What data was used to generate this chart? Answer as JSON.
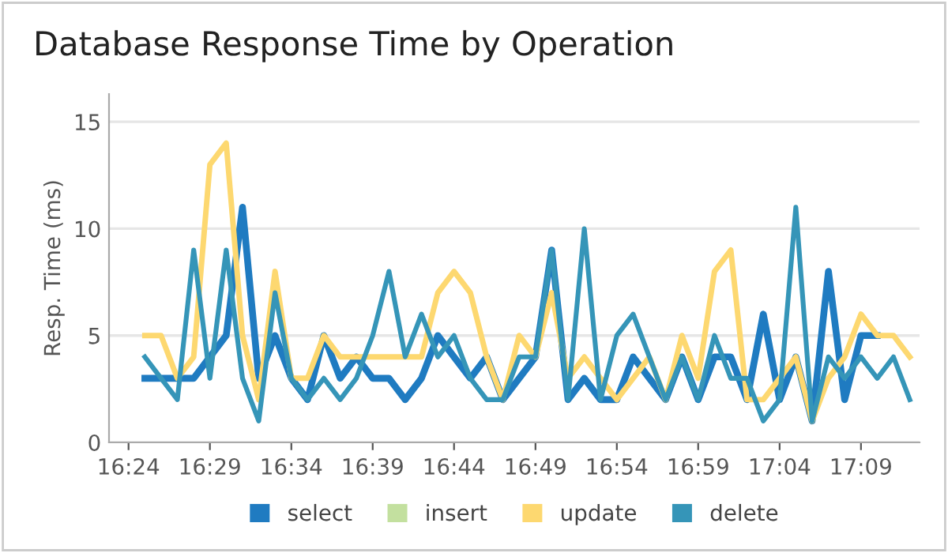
{
  "chart_data": {
    "type": "line",
    "title": "Database Response Time by Operation",
    "ylabel": "Resp. Time (ms)",
    "x": [
      16.4167,
      16.4333,
      16.45,
      16.4667,
      16.4833,
      16.5,
      16.5167,
      16.5333,
      16.55,
      16.5667,
      16.5833,
      16.6,
      16.6167,
      16.6333,
      16.65,
      16.6667,
      16.6833,
      16.7,
      16.7167,
      16.7333,
      16.75,
      16.7667,
      16.7833,
      16.8,
      16.8167,
      16.8333,
      16.85,
      16.8667,
      16.8833,
      16.9,
      16.9167,
      16.9333,
      16.95,
      16.9667,
      16.9833,
      17,
      17.0167,
      17.0333,
      17.05,
      17.0667,
      17.0833,
      17.1,
      17.1167,
      17.1333,
      17.15,
      17.1667,
      17.1833,
      17.2
    ],
    "series": [
      {
        "name": "select",
        "color": "#1f7bc1",
        "values": [
          3,
          3,
          3,
          3,
          4,
          5,
          11,
          3,
          5,
          3,
          2,
          5,
          3,
          4,
          3,
          3,
          2,
          3,
          5,
          4,
          3,
          4,
          2,
          3,
          4,
          9,
          2,
          3,
          2,
          2,
          4,
          3,
          2,
          4,
          2,
          4,
          4,
          2,
          6,
          2,
          4,
          1,
          8,
          2,
          5,
          5,
          null,
          null
        ]
      },
      {
        "name": "insert",
        "color": "#c3e09f",
        "values": [
          null,
          null,
          null,
          null,
          null,
          null,
          null,
          null,
          null,
          null,
          null,
          null,
          null,
          null,
          null,
          null,
          null,
          null,
          null,
          null,
          null,
          null,
          null,
          null,
          null,
          null,
          null,
          null,
          null,
          null,
          null,
          null,
          null,
          null,
          null,
          null,
          null,
          null,
          null,
          null,
          null,
          null,
          null,
          null,
          null,
          null,
          null,
          null
        ]
      },
      {
        "name": "update",
        "color": "#fdd870",
        "values": [
          5,
          5,
          3,
          4,
          13,
          14,
          5,
          2,
          8,
          3,
          3,
          5,
          4,
          4,
          4,
          4,
          4,
          4,
          7,
          8,
          7,
          4,
          2,
          5,
          4,
          7,
          3,
          4,
          3,
          2,
          3,
          4,
          2,
          5,
          3,
          8,
          9,
          2,
          2,
          3,
          4,
          1,
          3,
          4,
          6,
          5,
          5,
          4
        ]
      },
      {
        "name": "delete",
        "color": "#3595b8",
        "values": [
          4,
          3,
          2,
          9,
          3,
          9,
          3,
          1,
          7,
          3,
          2,
          3,
          2,
          3,
          5,
          8,
          4,
          6,
          4,
          5,
          3,
          2,
          2,
          4,
          4,
          9,
          2,
          10,
          2,
          5,
          6,
          4,
          2,
          4,
          2,
          5,
          3,
          3,
          1,
          2,
          11,
          1,
          4,
          3,
          4,
          3,
          4,
          2
        ]
      }
    ],
    "xlim": [
      16.38,
      17.21
    ],
    "xticks": [
      {
        "value": 16.4,
        "label": "16:24"
      },
      {
        "value": 16.4833,
        "label": "16:29"
      },
      {
        "value": 16.5667,
        "label": "16:34"
      },
      {
        "value": 16.65,
        "label": "16:39"
      },
      {
        "value": 16.7333,
        "label": "16:44"
      },
      {
        "value": 16.8167,
        "label": "16:49"
      },
      {
        "value": 16.9,
        "label": "16:54"
      },
      {
        "value": 16.9833,
        "label": "16:59"
      },
      {
        "value": 17.0667,
        "label": "17:04"
      },
      {
        "value": 17.15,
        "label": "17:09"
      }
    ],
    "ylim": [
      0,
      16.3
    ],
    "yticks": [
      0,
      5,
      10,
      15
    ],
    "grid": "y",
    "legend": "bottom",
    "marker": "none",
    "line_style": "solid"
  }
}
